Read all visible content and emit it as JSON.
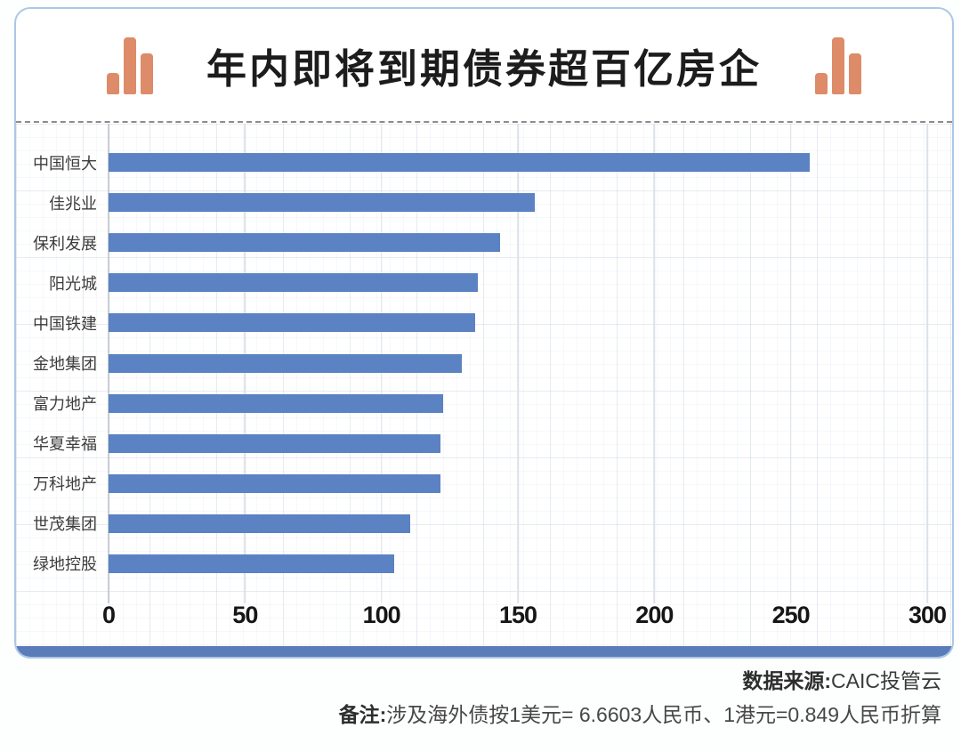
{
  "chart_data": {
    "type": "bar",
    "orientation": "horizontal",
    "title": "年内即将到期债券超百亿房企",
    "categories": [
      "中国恒大",
      "佳兆业",
      "保利发展",
      "阳光城",
      "中国铁建",
      "金地集团",
      "富力地产",
      "华夏幸福",
      "万科地产",
      "世茂集团",
      "绿地控股"
    ],
    "values": [
      258,
      157,
      144,
      136,
      135,
      130,
      123,
      122,
      122,
      111,
      105
    ],
    "xlim": [
      0,
      300
    ],
    "x_ticks": [
      0,
      50,
      100,
      150,
      200,
      250,
      300
    ],
    "grid": true,
    "legend": false,
    "bar_color": "#5b82c2"
  },
  "header": {
    "left_icon": "bar-chart-icon",
    "right_icon": "bar-chart-icon"
  },
  "footer": {
    "source_label": "数据来源:",
    "source_value": "CAIC投管云",
    "note_label": "备注:",
    "note_value": "涉及海外债按1美元= 6.6603人民币、1港元=0.849人民币折算"
  },
  "colors": {
    "bar": "#5b82c2",
    "accent_band": "#5b7cb8",
    "card_border": "#abc8e5",
    "header_icon": "#dd8b69",
    "title_text": "#1c1c1c",
    "axis_text": "#161616",
    "category_text": "#3c3c3c",
    "dashed_line": "#8c8c8c"
  }
}
